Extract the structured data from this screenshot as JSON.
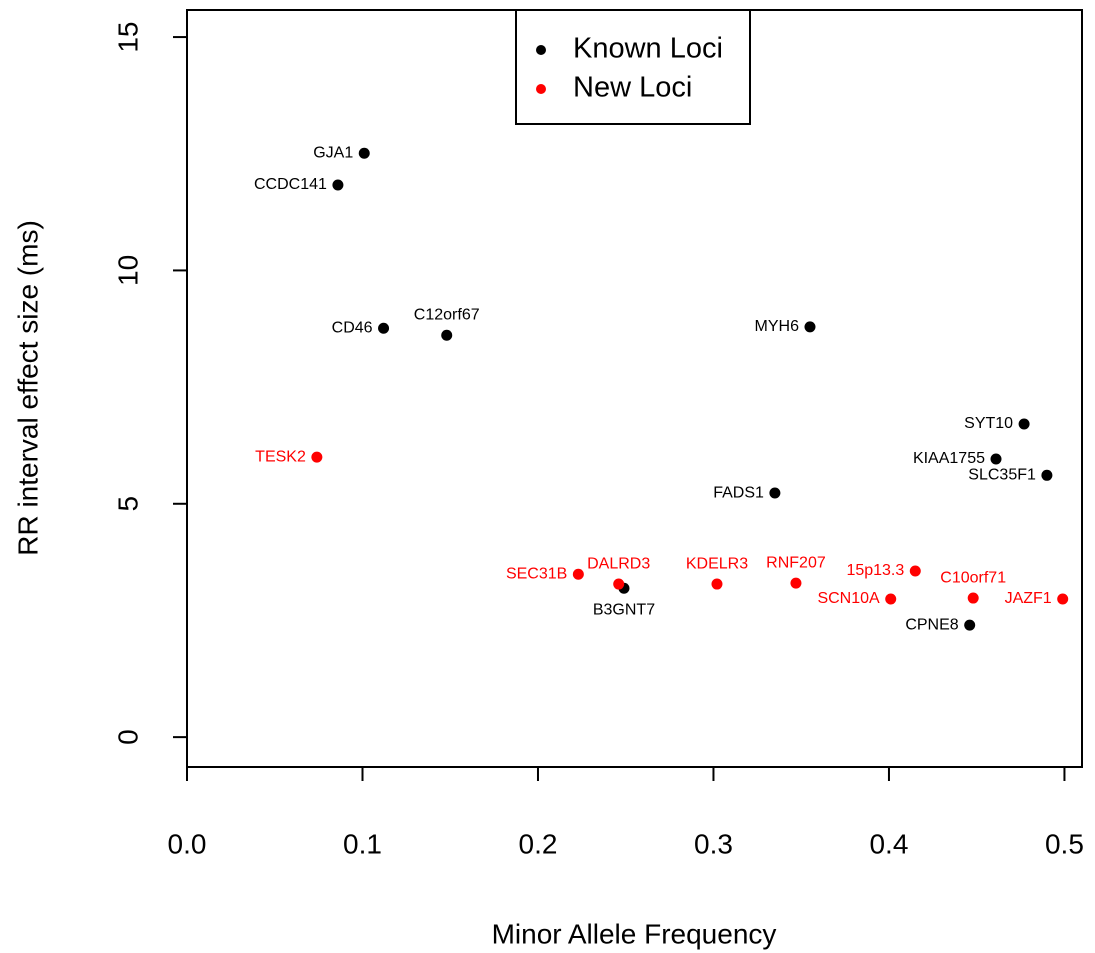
{
  "chart_data": {
    "type": "scatter",
    "x_label": "Minor Allele Frequency",
    "y_label": "RR interval effect size (ms)",
    "xlim": [
      0,
      0.51
    ],
    "ylim": [
      -0.64,
      15.58
    ],
    "xticks": [
      {
        "value": 0,
        "label": "0.0"
      },
      0.1,
      0.2,
      0.3,
      0.4,
      0.5
    ],
    "yticks": [
      0,
      5,
      10,
      15
    ],
    "legend": "top",
    "series": [
      {
        "name": "Known Loci",
        "color": "#000000",
        "labels": [
          "GJA1",
          "CCDC141",
          "CD46",
          "C12orf67",
          "MYH6",
          "SYT10",
          "KIAA1755",
          "SLC35F1",
          "FADS1",
          "B3GNT7",
          "CPNE8"
        ],
        "x": [
          0.101,
          0.086,
          0.112,
          0.148,
          0.355,
          0.477,
          0.461,
          0.49,
          0.335,
          0.249,
          0.446
        ],
        "values": [
          12.51,
          11.83,
          8.76,
          8.61,
          8.79,
          6.71,
          5.96,
          5.61,
          5.23,
          3.19,
          2.4
        ]
      },
      {
        "name": "New Loci",
        "color": "#ff0000",
        "labels": [
          "TESK2",
          "SEC31B",
          "DALRD3",
          "KDELR3",
          "RNF207",
          "15p13.3",
          "SCN10A",
          "C10orf71",
          "JAZF1"
        ],
        "x": [
          0.074,
          0.223,
          0.246,
          0.302,
          0.347,
          0.415,
          0.401,
          0.448,
          0.499
        ],
        "values": [
          6.0,
          3.49,
          3.28,
          3.28,
          3.3,
          3.56,
          2.96,
          2.98,
          2.96
        ]
      }
    ]
  }
}
